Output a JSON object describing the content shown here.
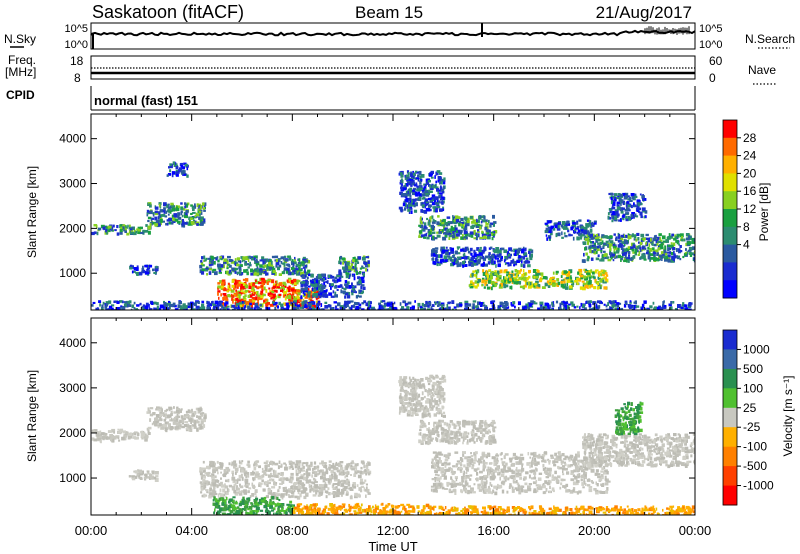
{
  "header": {
    "station": "Saskatoon (fitACF)",
    "beam": "Beam 15",
    "date": "21/Aug/2017"
  },
  "noise_panel": {
    "left_label": "N.Sky",
    "right_label": "N.Search",
    "ticks": [
      "10^5",
      "10^0"
    ]
  },
  "freq_panel": {
    "left_label_1": "Freq.",
    "left_label_2": "[MHz]",
    "left_ticks": [
      "18",
      "8"
    ],
    "right_label": "Nave",
    "right_ticks": [
      "60",
      "0"
    ]
  },
  "cpid": {
    "label": "CPID",
    "value": "normal (fast) 151"
  },
  "chart_data": [
    {
      "type": "heatmap",
      "panel": "power",
      "ylabel": "Slant Range [km]",
      "xlabel": "Time UT",
      "x_tick_labels": [
        "00:00",
        "04:00",
        "08:00",
        "12:00",
        "16:00",
        "20:00",
        "00:00"
      ],
      "xlim_hours": [
        0,
        24
      ],
      "ylim_km": [
        180,
        4550
      ],
      "y_ticks": [
        1000,
        2000,
        3000,
        4000
      ],
      "colorbar": {
        "label": "Power [dB]",
        "ticks": [
          "28",
          "24",
          "20",
          "16",
          "12",
          "8",
          "4"
        ],
        "colors": [
          "#ff0000",
          "#ff6a00",
          "#ffb000",
          "#e0e000",
          "#88d020",
          "#1aa040",
          "#2c8c70",
          "#2a5aa0",
          "#1a2cd0",
          "#0000ff"
        ]
      },
      "bands": [
        {
          "t0": 0.0,
          "t1": 2.3,
          "r0": 1900,
          "r1": 2100,
          "cls": "mid"
        },
        {
          "t0": 2.2,
          "t1": 4.5,
          "r0": 2100,
          "r1": 2600,
          "cls": "mid"
        },
        {
          "t0": 3.0,
          "t1": 3.8,
          "r0": 3200,
          "r1": 3500,
          "cls": "low"
        },
        {
          "t0": 1.5,
          "t1": 2.6,
          "r0": 1000,
          "r1": 1200,
          "cls": "low"
        },
        {
          "t0": 4.3,
          "t1": 8.6,
          "r0": 1000,
          "r1": 1400,
          "cls": "mid"
        },
        {
          "t0": 5.0,
          "t1": 8.2,
          "r0": 300,
          "r1": 900,
          "cls": "hot"
        },
        {
          "t0": 7.8,
          "t1": 9.0,
          "r0": 200,
          "r1": 700,
          "cls": "hot"
        },
        {
          "t0": 8.3,
          "t1": 10.8,
          "r0": 500,
          "r1": 1000,
          "cls": "low"
        },
        {
          "t0": 9.8,
          "t1": 11.0,
          "r0": 1000,
          "r1": 1400,
          "cls": "mid"
        },
        {
          "t0": 12.2,
          "t1": 14.0,
          "r0": 2400,
          "r1": 3300,
          "cls": "low"
        },
        {
          "t0": 13.0,
          "t1": 16.0,
          "r0": 1800,
          "r1": 2300,
          "cls": "mid"
        },
        {
          "t0": 13.5,
          "t1": 17.5,
          "r0": 1200,
          "r1": 1600,
          "cls": "low"
        },
        {
          "t0": 15.0,
          "t1": 20.5,
          "r0": 700,
          "r1": 1100,
          "cls": "warm"
        },
        {
          "t0": 18.0,
          "t1": 20.0,
          "r0": 1800,
          "r1": 2200,
          "cls": "low"
        },
        {
          "t0": 19.5,
          "t1": 24.0,
          "r0": 1300,
          "r1": 1900,
          "cls": "mid"
        },
        {
          "t0": 20.5,
          "t1": 22.0,
          "r0": 2200,
          "r1": 2800,
          "cls": "low"
        },
        {
          "t0": 0.0,
          "t1": 24.0,
          "r0": 180,
          "r1": 400,
          "cls": "low"
        }
      ]
    },
    {
      "type": "heatmap",
      "panel": "velocity",
      "ylabel": "Slant Range [km]",
      "xlabel": "Time UT",
      "x_tick_labels": [
        "00:00",
        "04:00",
        "08:00",
        "12:00",
        "16:00",
        "20:00",
        "00:00"
      ],
      "xlim_hours": [
        0,
        24
      ],
      "ylim_km": [
        180,
        4550
      ],
      "y_ticks": [
        1000,
        2000,
        3000,
        4000
      ],
      "colorbar": {
        "label": "Velocity [m s⁻¹]",
        "ticks": [
          "1000",
          "500",
          "100",
          "25",
          "-25",
          "-100",
          "-500",
          "-1000"
        ],
        "colors": [
          "#1a2cd0",
          "#3a6aa8",
          "#2a9050",
          "#50c030",
          "#c8c8c0",
          "#ffb000",
          "#ff8000",
          "#ff4000",
          "#ff0000"
        ]
      },
      "bands": [
        {
          "t0": 0.0,
          "t1": 2.3,
          "r0": 1850,
          "r1": 2100,
          "cls": "gray"
        },
        {
          "t0": 2.2,
          "t1": 4.5,
          "r0": 2100,
          "r1": 2600,
          "cls": "gray"
        },
        {
          "t0": 1.5,
          "t1": 2.6,
          "r0": 1000,
          "r1": 1200,
          "cls": "gray"
        },
        {
          "t0": 4.3,
          "t1": 11.0,
          "r0": 600,
          "r1": 1400,
          "cls": "gray"
        },
        {
          "t0": 4.8,
          "t1": 8.0,
          "r0": 180,
          "r1": 600,
          "cls": "green"
        },
        {
          "t0": 8.0,
          "t1": 13.5,
          "r0": 180,
          "r1": 450,
          "cls": "orange"
        },
        {
          "t0": 12.2,
          "t1": 14.0,
          "r0": 2400,
          "r1": 3300,
          "cls": "gray"
        },
        {
          "t0": 13.0,
          "t1": 16.0,
          "r0": 1800,
          "r1": 2300,
          "cls": "gray"
        },
        {
          "t0": 13.5,
          "t1": 20.5,
          "r0": 700,
          "r1": 1600,
          "cls": "gray"
        },
        {
          "t0": 19.5,
          "t1": 24.0,
          "r0": 1300,
          "r1": 2000,
          "cls": "gray"
        },
        {
          "t0": 20.8,
          "t1": 21.8,
          "r0": 2000,
          "r1": 2700,
          "cls": "green"
        },
        {
          "t0": 13.5,
          "t1": 24.0,
          "r0": 180,
          "r1": 400,
          "cls": "orange"
        }
      ]
    }
  ]
}
